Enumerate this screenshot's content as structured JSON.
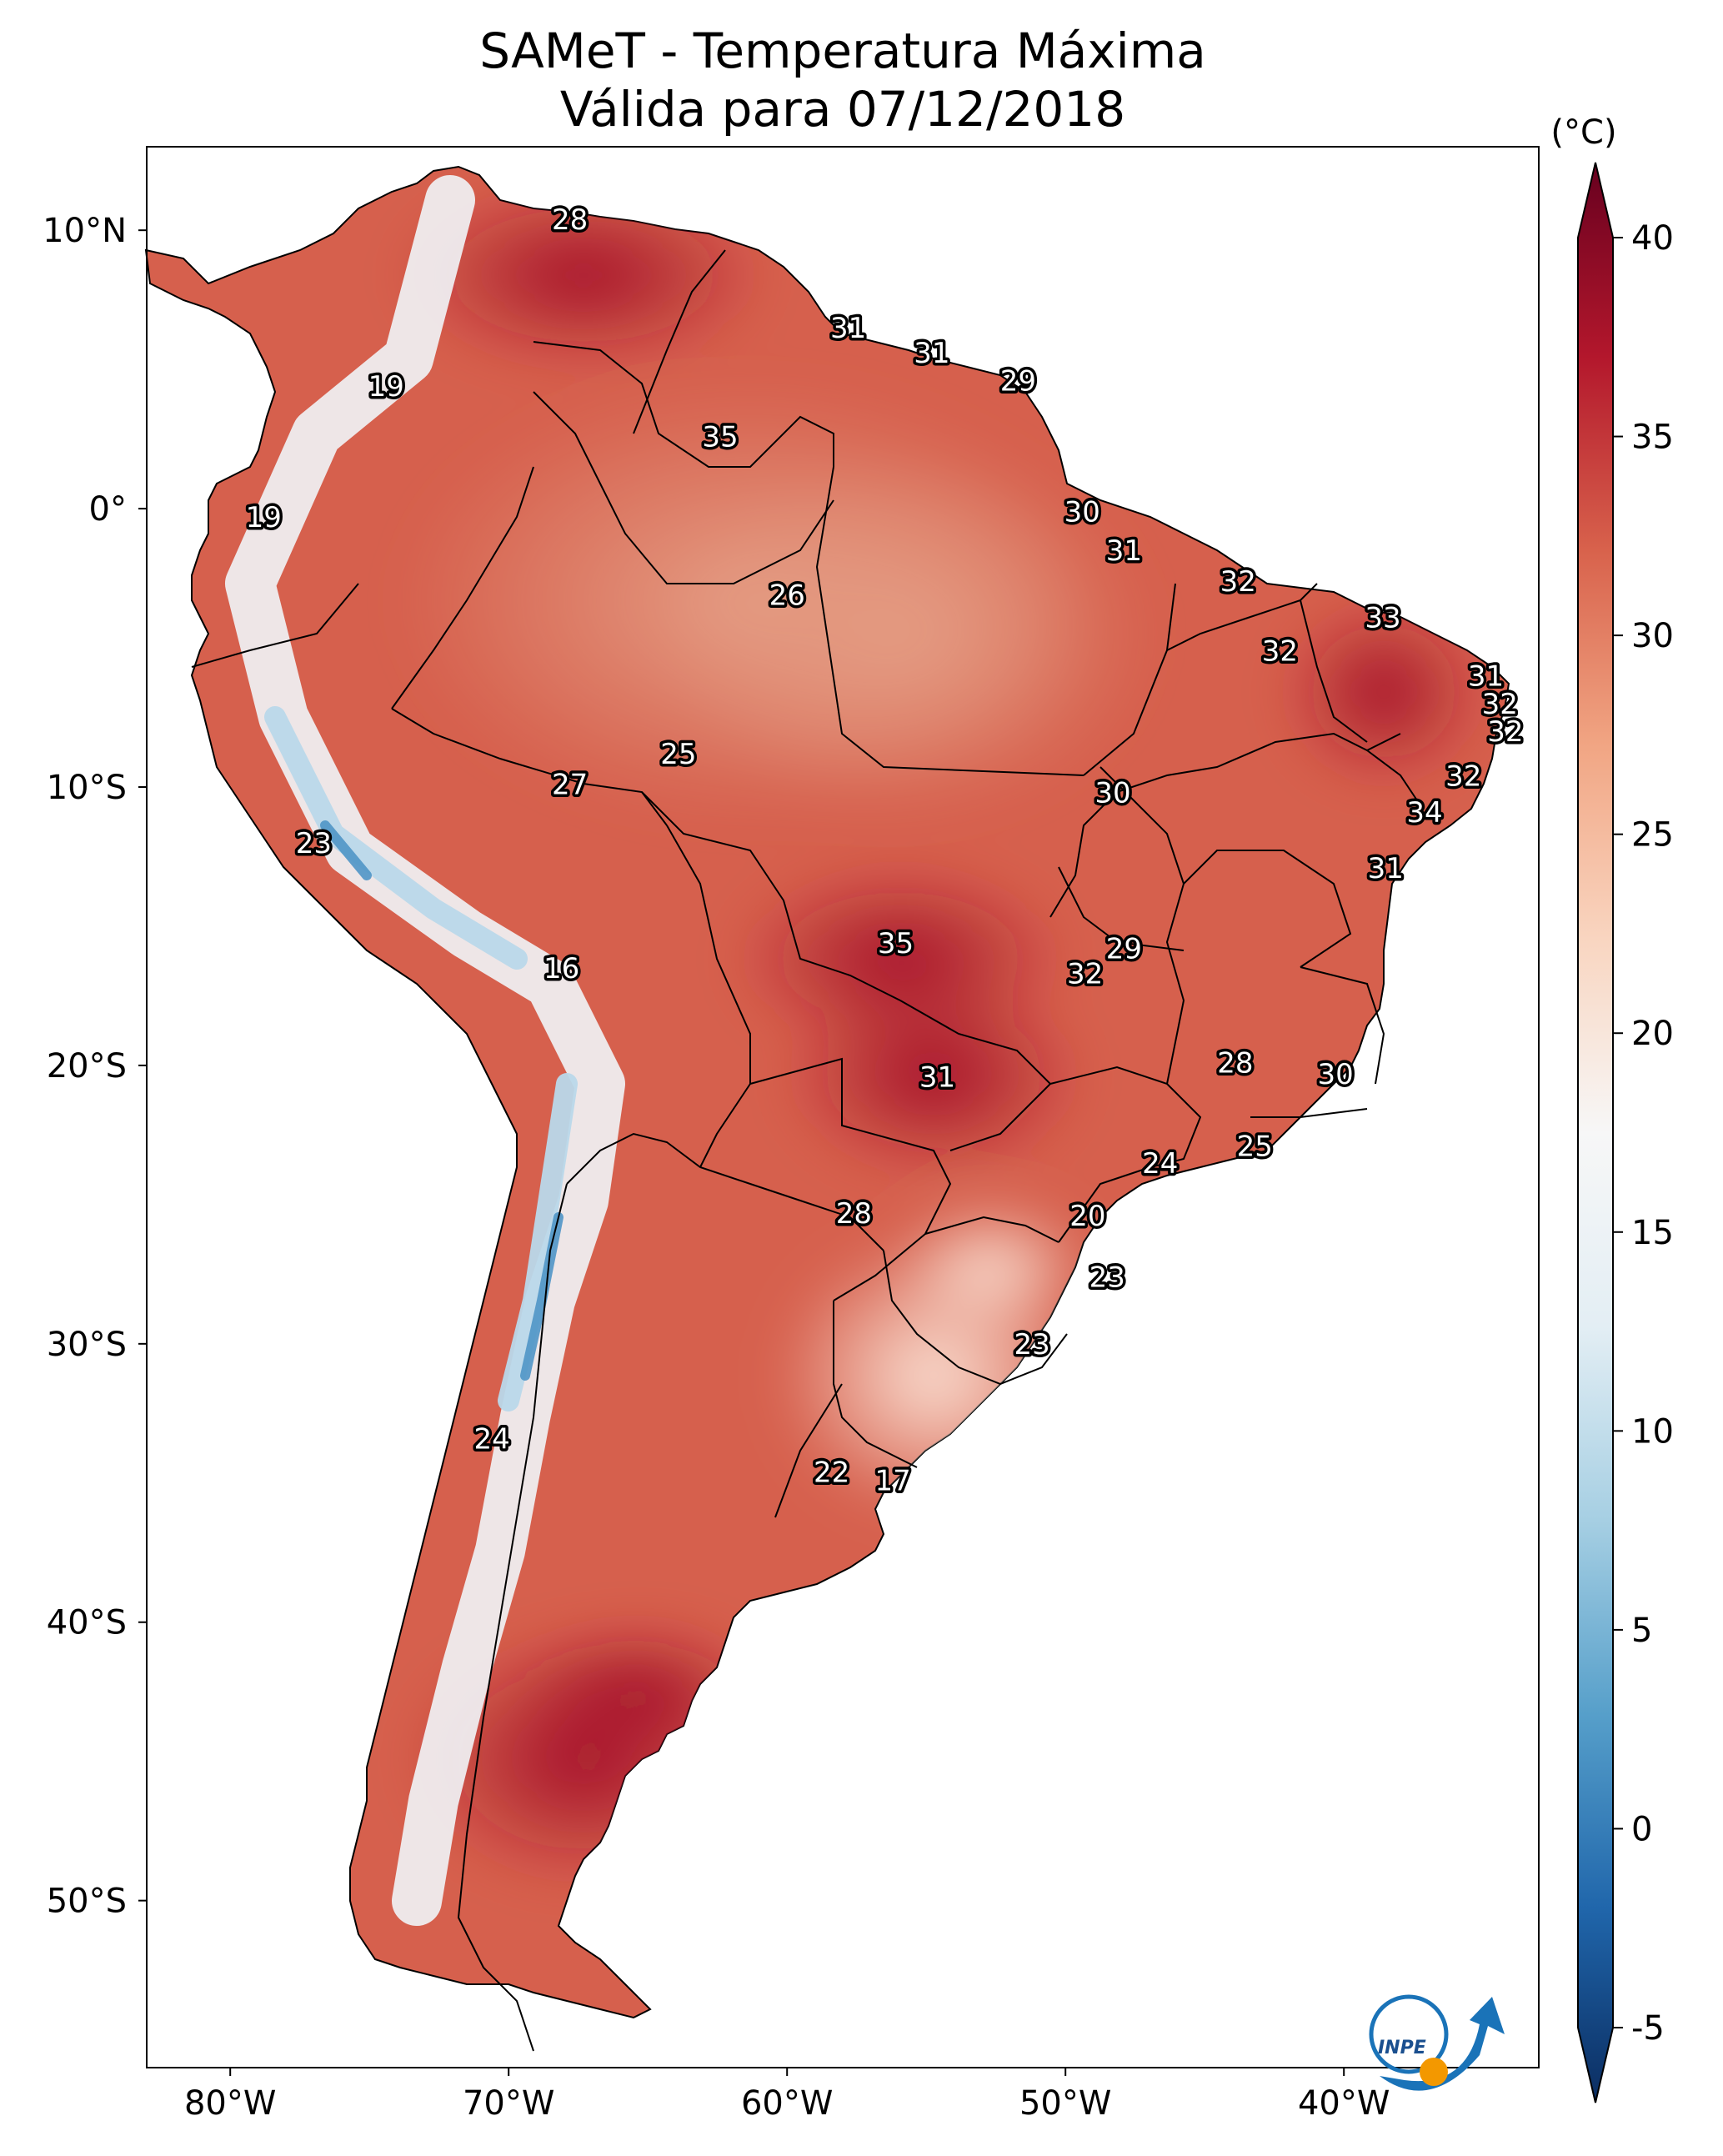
{
  "title": "SAMeT - Temperatura Máxima",
  "subtitle": "Válida para 07/12/2018",
  "colorbar": {
    "unit": "(°C)",
    "ticks": [
      40,
      35,
      30,
      25,
      20,
      15,
      10,
      5,
      0,
      -5
    ],
    "tick_labels": [
      "40",
      "35",
      "30",
      "25",
      "20",
      "15",
      "10",
      "5",
      "0",
      "-5"
    ],
    "min": -5,
    "max": 40,
    "colors": [
      "#0b2d61",
      "#2066ab",
      "#569fca",
      "#a6cfe3",
      "#e3eef4",
      "#f7f7f7",
      "#f9d5c0",
      "#f1a583",
      "#d8624c",
      "#b3172c",
      "#67001f"
    ]
  },
  "axes": {
    "lat_labels": [
      "10°N",
      "0°",
      "10°S",
      "20°S",
      "30°S",
      "40°S",
      "50°S"
    ],
    "lat_values": [
      10,
      0,
      -10,
      -20,
      -30,
      -40,
      -50
    ],
    "lon_labels": [
      "80°W",
      "70°W",
      "60°W",
      "50°W",
      "40°W"
    ],
    "lon_values": [
      -80,
      -70,
      -60,
      -50,
      -40
    ]
  },
  "map_extent": {
    "lon_min": -83,
    "lon_max": -33,
    "lat_min": -56,
    "lat_max": 13
  },
  "station_labels": [
    {
      "value": "28",
      "lon": -67.8,
      "lat": 10.4
    },
    {
      "value": "31",
      "lon": -57.8,
      "lat": 6.5
    },
    {
      "value": "31",
      "lon": -54.8,
      "lat": 5.6
    },
    {
      "value": "29",
      "lon": -51.7,
      "lat": 4.6
    },
    {
      "value": "19",
      "lon": -74.4,
      "lat": 4.4
    },
    {
      "value": "35",
      "lon": -62.4,
      "lat": 2.6
    },
    {
      "value": "19",
      "lon": -78.8,
      "lat": -0.3
    },
    {
      "value": "30",
      "lon": -49.4,
      "lat": -0.1
    },
    {
      "value": "31",
      "lon": -47.9,
      "lat": -1.5
    },
    {
      "value": "32",
      "lon": -43.8,
      "lat": -2.6
    },
    {
      "value": "33",
      "lon": -38.6,
      "lat": -3.9
    },
    {
      "value": "26",
      "lon": -60.0,
      "lat": -3.1
    },
    {
      "value": "32",
      "lon": -42.3,
      "lat": -5.1
    },
    {
      "value": "31",
      "lon": -34.9,
      "lat": -6.0
    },
    {
      "value": "32",
      "lon": -34.4,
      "lat": -7.0
    },
    {
      "value": "32",
      "lon": -34.2,
      "lat": -8.0
    },
    {
      "value": "25",
      "lon": -63.9,
      "lat": -8.8
    },
    {
      "value": "27",
      "lon": -67.8,
      "lat": -9.9
    },
    {
      "value": "30",
      "lon": -48.3,
      "lat": -10.2
    },
    {
      "value": "32",
      "lon": -35.7,
      "lat": -9.6
    },
    {
      "value": "34",
      "lon": -37.1,
      "lat": -10.9
    },
    {
      "value": "23",
      "lon": -77.0,
      "lat": -12.0
    },
    {
      "value": "31",
      "lon": -38.5,
      "lat": -12.9
    },
    {
      "value": "35",
      "lon": -56.1,
      "lat": -15.6
    },
    {
      "value": "29",
      "lon": -47.9,
      "lat": -15.8
    },
    {
      "value": "16",
      "lon": -68.1,
      "lat": -16.5
    },
    {
      "value": "32",
      "lon": -49.3,
      "lat": -16.7
    },
    {
      "value": "28",
      "lon": -43.9,
      "lat": -19.9
    },
    {
      "value": "30",
      "lon": -40.3,
      "lat": -20.3
    },
    {
      "value": "31",
      "lon": -54.6,
      "lat": -20.4
    },
    {
      "value": "25",
      "lon": -43.2,
      "lat": -22.9
    },
    {
      "value": "24",
      "lon": -46.6,
      "lat": -23.5
    },
    {
      "value": "20",
      "lon": -49.2,
      "lat": -25.4
    },
    {
      "value": "28",
      "lon": -57.6,
      "lat": -25.3
    },
    {
      "value": "23",
      "lon": -48.5,
      "lat": -27.6
    },
    {
      "value": "23",
      "lon": -51.2,
      "lat": -30.0
    },
    {
      "value": "24",
      "lon": -70.6,
      "lat": -33.4
    },
    {
      "value": "22",
      "lon": -58.4,
      "lat": -34.6
    },
    {
      "value": "17",
      "lon": -56.2,
      "lat": -34.9
    }
  ],
  "logo": {
    "text": "INPE"
  }
}
